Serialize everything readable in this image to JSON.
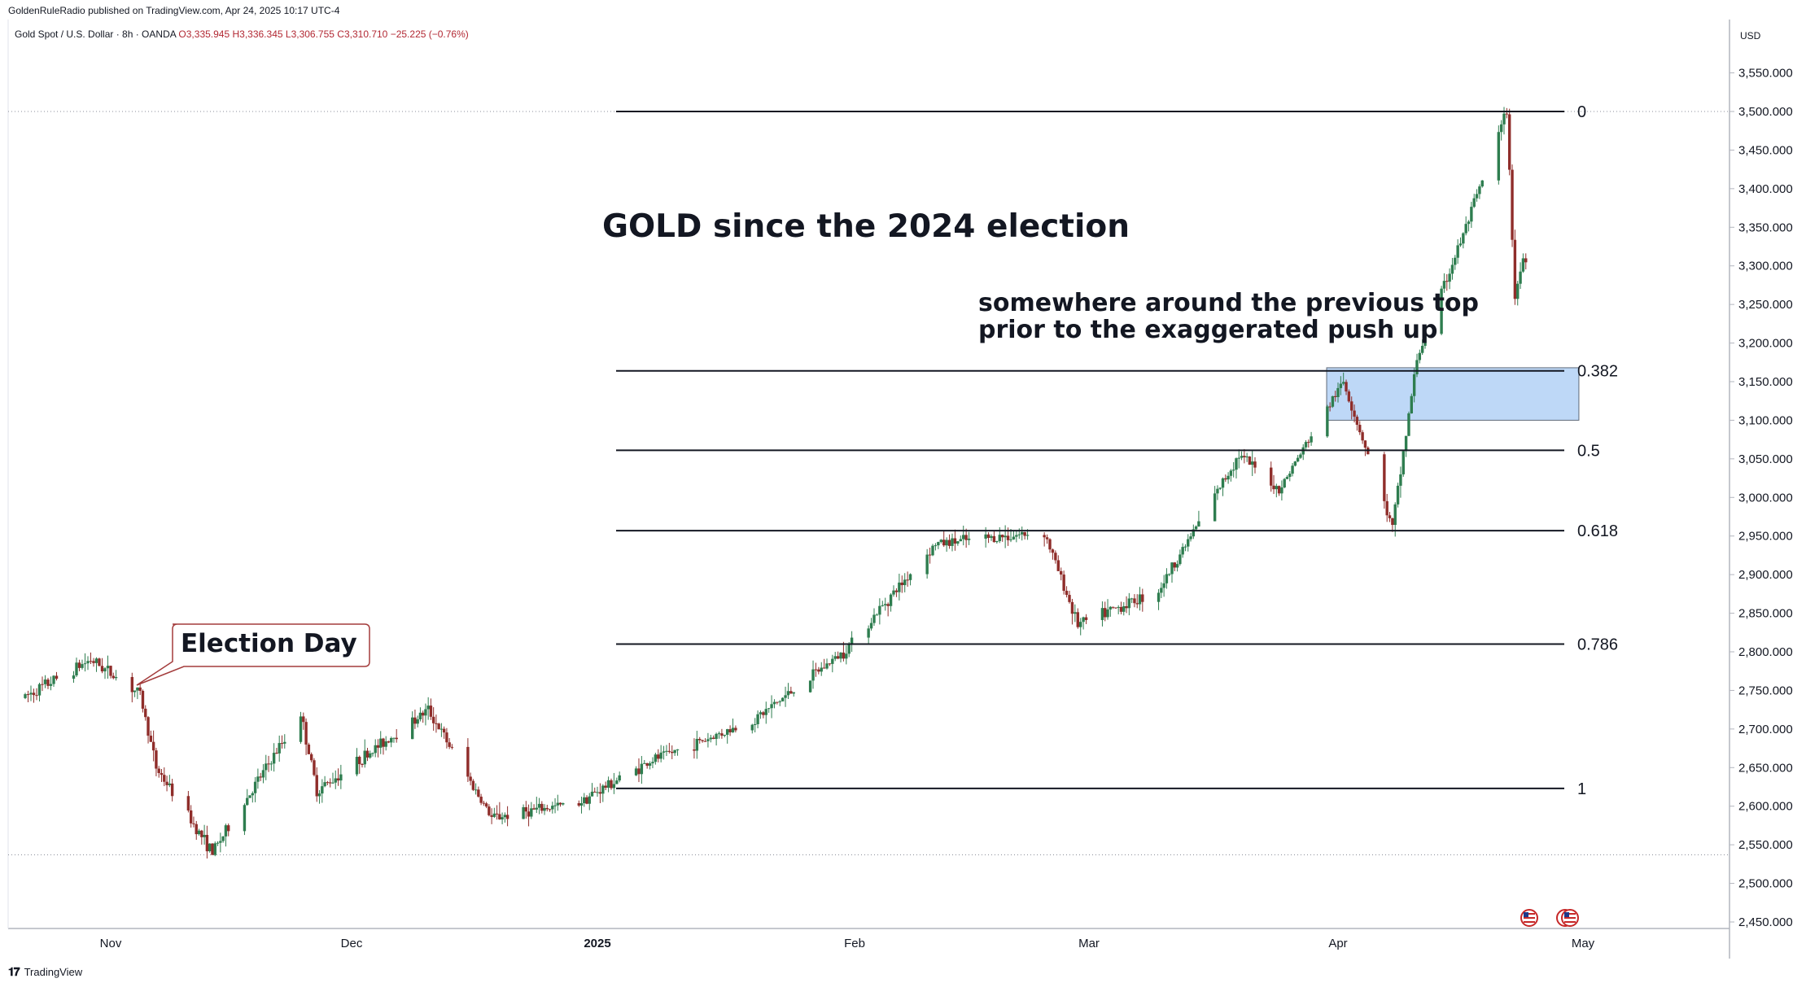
{
  "header": {
    "publisher": "GoldenRuleRadio published on TradingView.com, Apr 24, 2025 10:17 UTC-4",
    "symbol": "Gold Spot / U.S. Dollar · 8h · OANDA",
    "open": "O3,335.945",
    "high": "H3,336.345",
    "low": "L3,306.755",
    "close": "C3,310.710",
    "change": "−25.225 (−0.76%)"
  },
  "currency": "USD",
  "footer": {
    "brand": "TradingView"
  },
  "annotations": {
    "title": "GOLD since the 2024 election",
    "note": "somewhere around the previous top\nprior to the exaggerated push up",
    "callout": "Election Day"
  },
  "colors": {
    "up": "#2e7d4f",
    "down": "#8f2d2a",
    "zone": "#bbd6f7",
    "zone_border": "#5f6a7a"
  },
  "chart_data": {
    "type": "candlestick",
    "ylim": [
      2450,
      3600
    ],
    "y_ticks": [
      "2,450.000",
      "2,500.000",
      "2,550.000",
      "2,600.000",
      "2,650.000",
      "2,700.000",
      "2,750.000",
      "2,800.000",
      "2,850.000",
      "2,900.000",
      "2,950.000",
      "3,000.000",
      "3,050.000",
      "3,100.000",
      "3,150.000",
      "3,200.000",
      "3,250.000",
      "3,300.000",
      "3,350.000",
      "3,400.000",
      "3,450.000",
      "3,500.000",
      "3,550.000"
    ],
    "x_labels": [
      "Nov",
      "Dec",
      "2025",
      "Feb",
      "Mar",
      "Apr",
      "May"
    ],
    "key_prices": [
      {
        "date": "2024-10-22",
        "price": 2740
      },
      {
        "date": "2024-10-30",
        "price": 2790
      },
      {
        "date": "2024-11-05",
        "price": 2745
      },
      {
        "date": "2024-11-07",
        "price": 2650
      },
      {
        "date": "2024-11-14",
        "price": 2540
      },
      {
        "date": "2024-11-25",
        "price": 2720
      },
      {
        "date": "2024-11-27",
        "price": 2620
      },
      {
        "date": "2024-12-11",
        "price": 2725
      },
      {
        "date": "2024-12-19",
        "price": 2585
      },
      {
        "date": "2024-12-30",
        "price": 2605
      },
      {
        "date": "2025-01-08",
        "price": 2660
      },
      {
        "date": "2025-01-20",
        "price": 2710
      },
      {
        "date": "2025-01-31",
        "price": 2800
      },
      {
        "date": "2025-02-11",
        "price": 2940
      },
      {
        "date": "2025-02-24",
        "price": 2955
      },
      {
        "date": "2025-02-28",
        "price": 2835
      },
      {
        "date": "2025-03-10",
        "price": 2880
      },
      {
        "date": "2025-03-20",
        "price": 3055
      },
      {
        "date": "2025-03-25",
        "price": 3010
      },
      {
        "date": "2025-04-02",
        "price": 3150
      },
      {
        "date": "2025-04-08",
        "price": 2960
      },
      {
        "date": "2025-04-11",
        "price": 3180
      },
      {
        "date": "2025-04-17",
        "price": 3350
      },
      {
        "date": "2025-04-22",
        "price": 3500
      },
      {
        "date": "2025-04-23",
        "price": 3260
      },
      {
        "date": "2025-04-24",
        "price": 3310
      }
    ],
    "fibonacci": [
      {
        "level": "0",
        "price": 3500
      },
      {
        "level": "0.382",
        "price": 3164
      },
      {
        "level": "0.5",
        "price": 3061
      },
      {
        "level": "0.618",
        "price": 2957
      },
      {
        "level": "0.786",
        "price": 2810
      },
      {
        "level": "1",
        "price": 2623
      }
    ],
    "zone": {
      "from_date": "2025-04-02",
      "to_date": "2025-04-29",
      "low": 3100,
      "high": 3168
    },
    "dotted_levels": [
      3500,
      2537
    ]
  }
}
